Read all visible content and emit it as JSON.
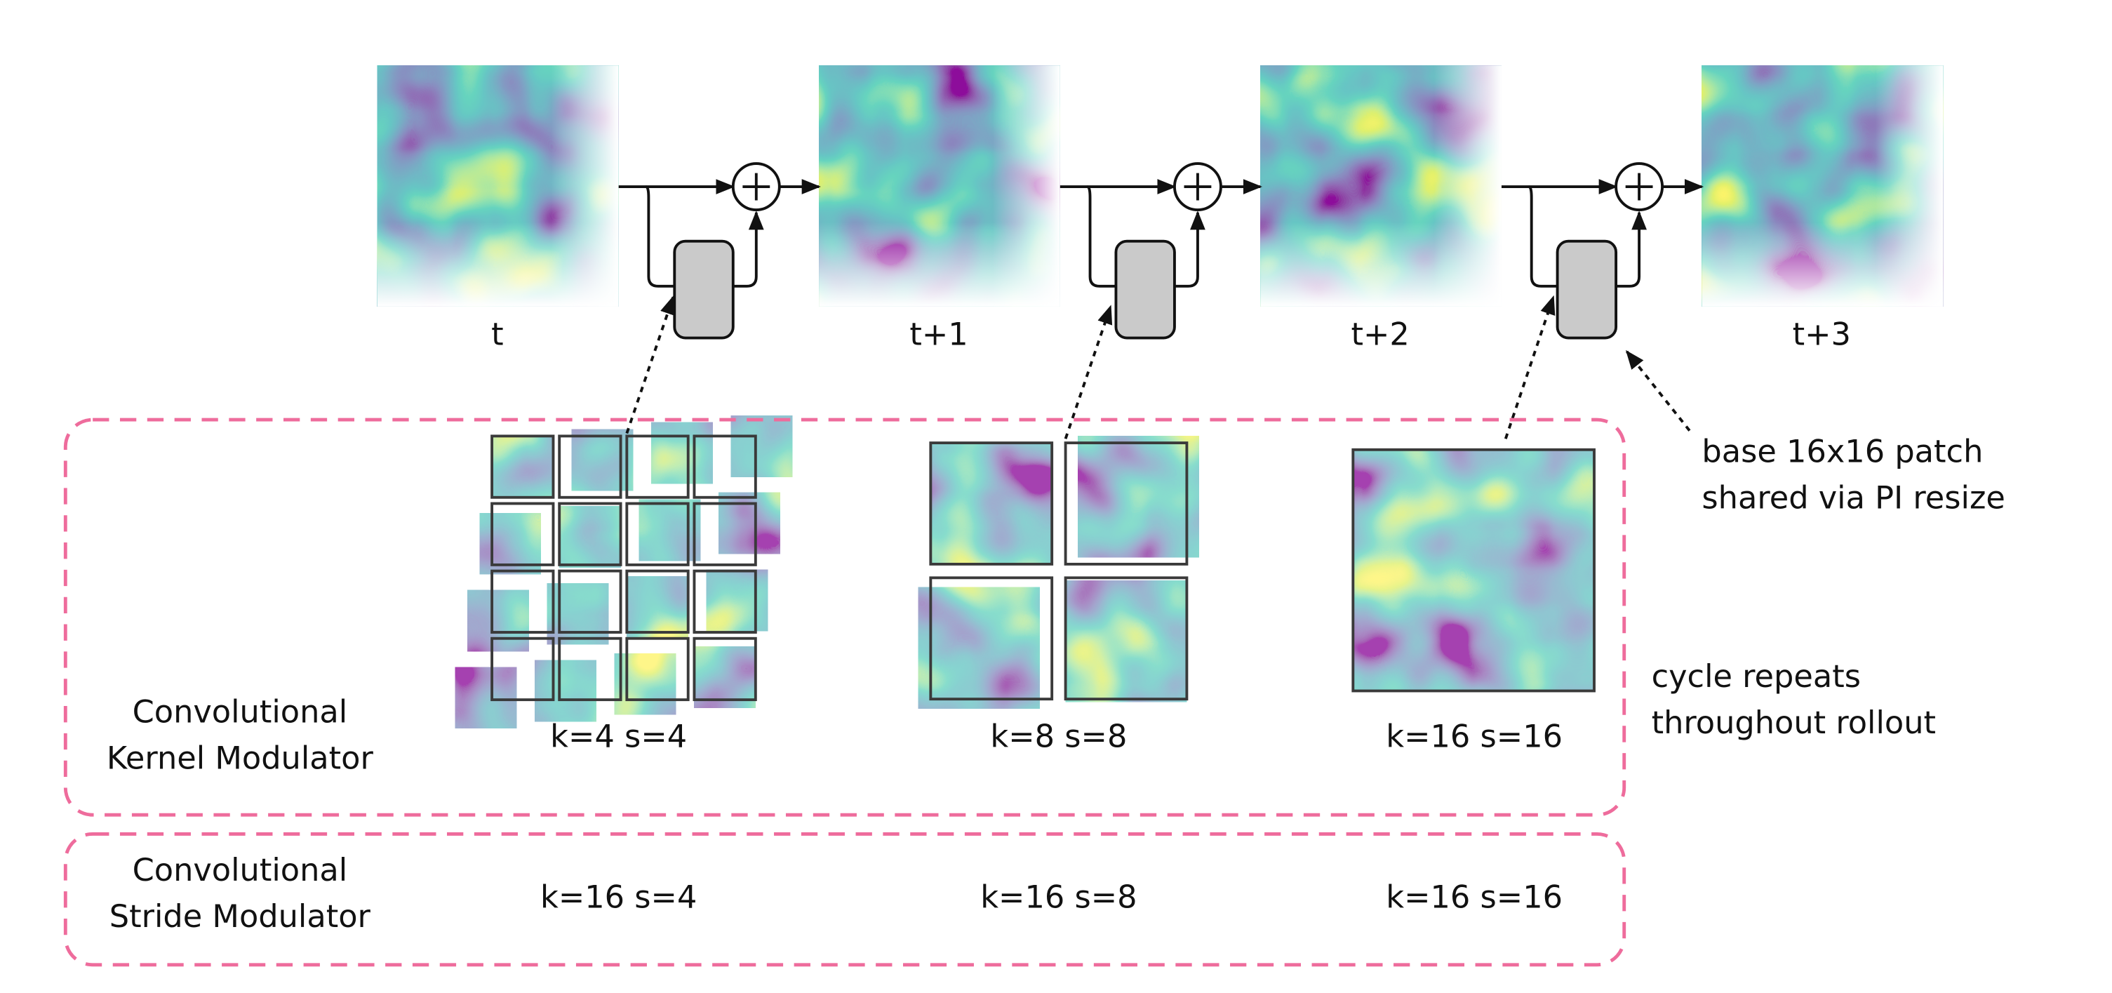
{
  "frames": [
    {
      "label": "t"
    },
    {
      "label": "t+1"
    },
    {
      "label": "t+2"
    },
    {
      "label": "t+3"
    }
  ],
  "kernel_modulator": {
    "label": [
      "Convolutional",
      "Kernel Modulator"
    ],
    "configs": [
      "k=4 s=4",
      "k=8 s=8",
      "k=16 s=16"
    ]
  },
  "stride_modulator": {
    "label": [
      "Convolutional",
      "Stride Modulator"
    ],
    "configs": [
      "k=16 s=4",
      "k=16 s=8",
      "k=16 s=16"
    ]
  },
  "annotations": {
    "shared_patch": [
      "base 16x16 patch",
      "shared via PI resize"
    ],
    "cycle": [
      "cycle repeats",
      "throughout rollout"
    ]
  }
}
